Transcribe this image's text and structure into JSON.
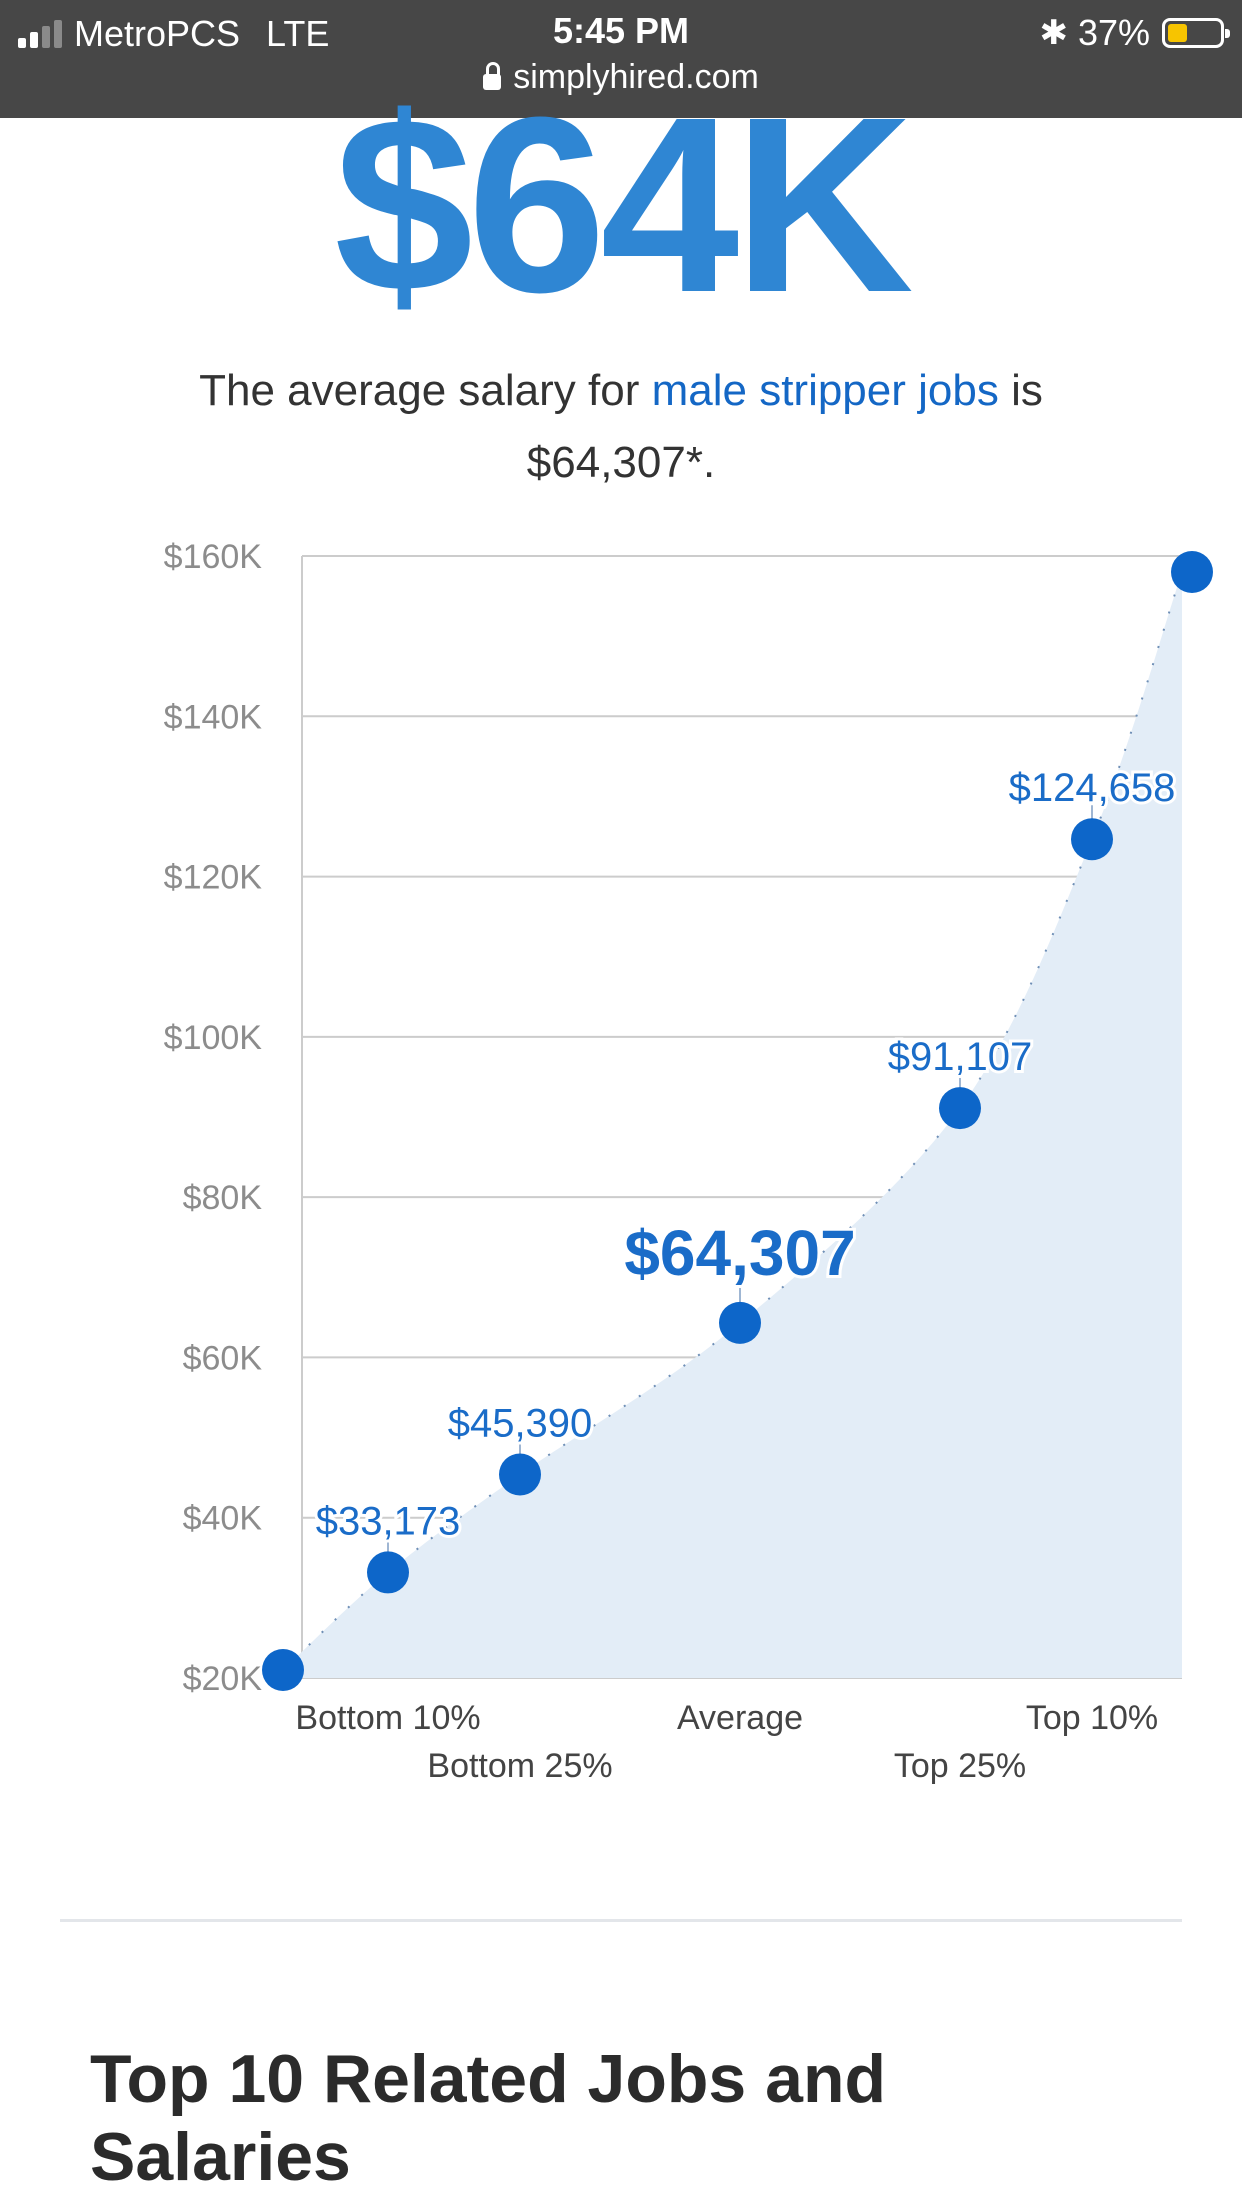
{
  "status_bar": {
    "carrier": "MetroPCS",
    "network": "LTE",
    "time": "5:45 PM",
    "battery": "37%",
    "battery_level": 0.37,
    "url": "simplyhired.com"
  },
  "hero": {
    "amount": "$64K"
  },
  "summary": {
    "prefix": "The average salary for ",
    "link": "male stripper jobs",
    "middle": " is",
    "amount": "$64,307*."
  },
  "chart_data": {
    "type": "area",
    "title": "",
    "xlabel": "",
    "ylabel": "",
    "ylim": [
      20000,
      160000
    ],
    "yticks": [
      20000,
      40000,
      60000,
      80000,
      100000,
      120000,
      140000,
      160000
    ],
    "ytick_labels": [
      "$20K",
      "$40K",
      "$60K",
      "$80K",
      "$100K",
      "$120K",
      "$140K",
      "$160K"
    ],
    "grid": true,
    "curve_endpoints": {
      "start": 21000,
      "end": 158000
    },
    "points": [
      {
        "category": "Bottom 10%",
        "value": 33173,
        "label": "$33,173",
        "highlight": false
      },
      {
        "category": "Bottom 25%",
        "value": 45390,
        "label": "$45,390",
        "highlight": false
      },
      {
        "category": "Average",
        "value": 64307,
        "label": "$64,307",
        "highlight": true
      },
      {
        "category": "Top 25%",
        "value": 91107,
        "label": "$91,107",
        "highlight": false
      },
      {
        "category": "Top 10%",
        "value": 124658,
        "label": "$124,658",
        "highlight": false
      }
    ],
    "colors": {
      "point": "#0d66c9",
      "fill": "#e3edf7",
      "grid": "#cccccc",
      "axis_text": "#8c8c8c",
      "label": "#1a6cc8"
    }
  },
  "section": {
    "title": "Top 10 Related Jobs and Salaries"
  }
}
